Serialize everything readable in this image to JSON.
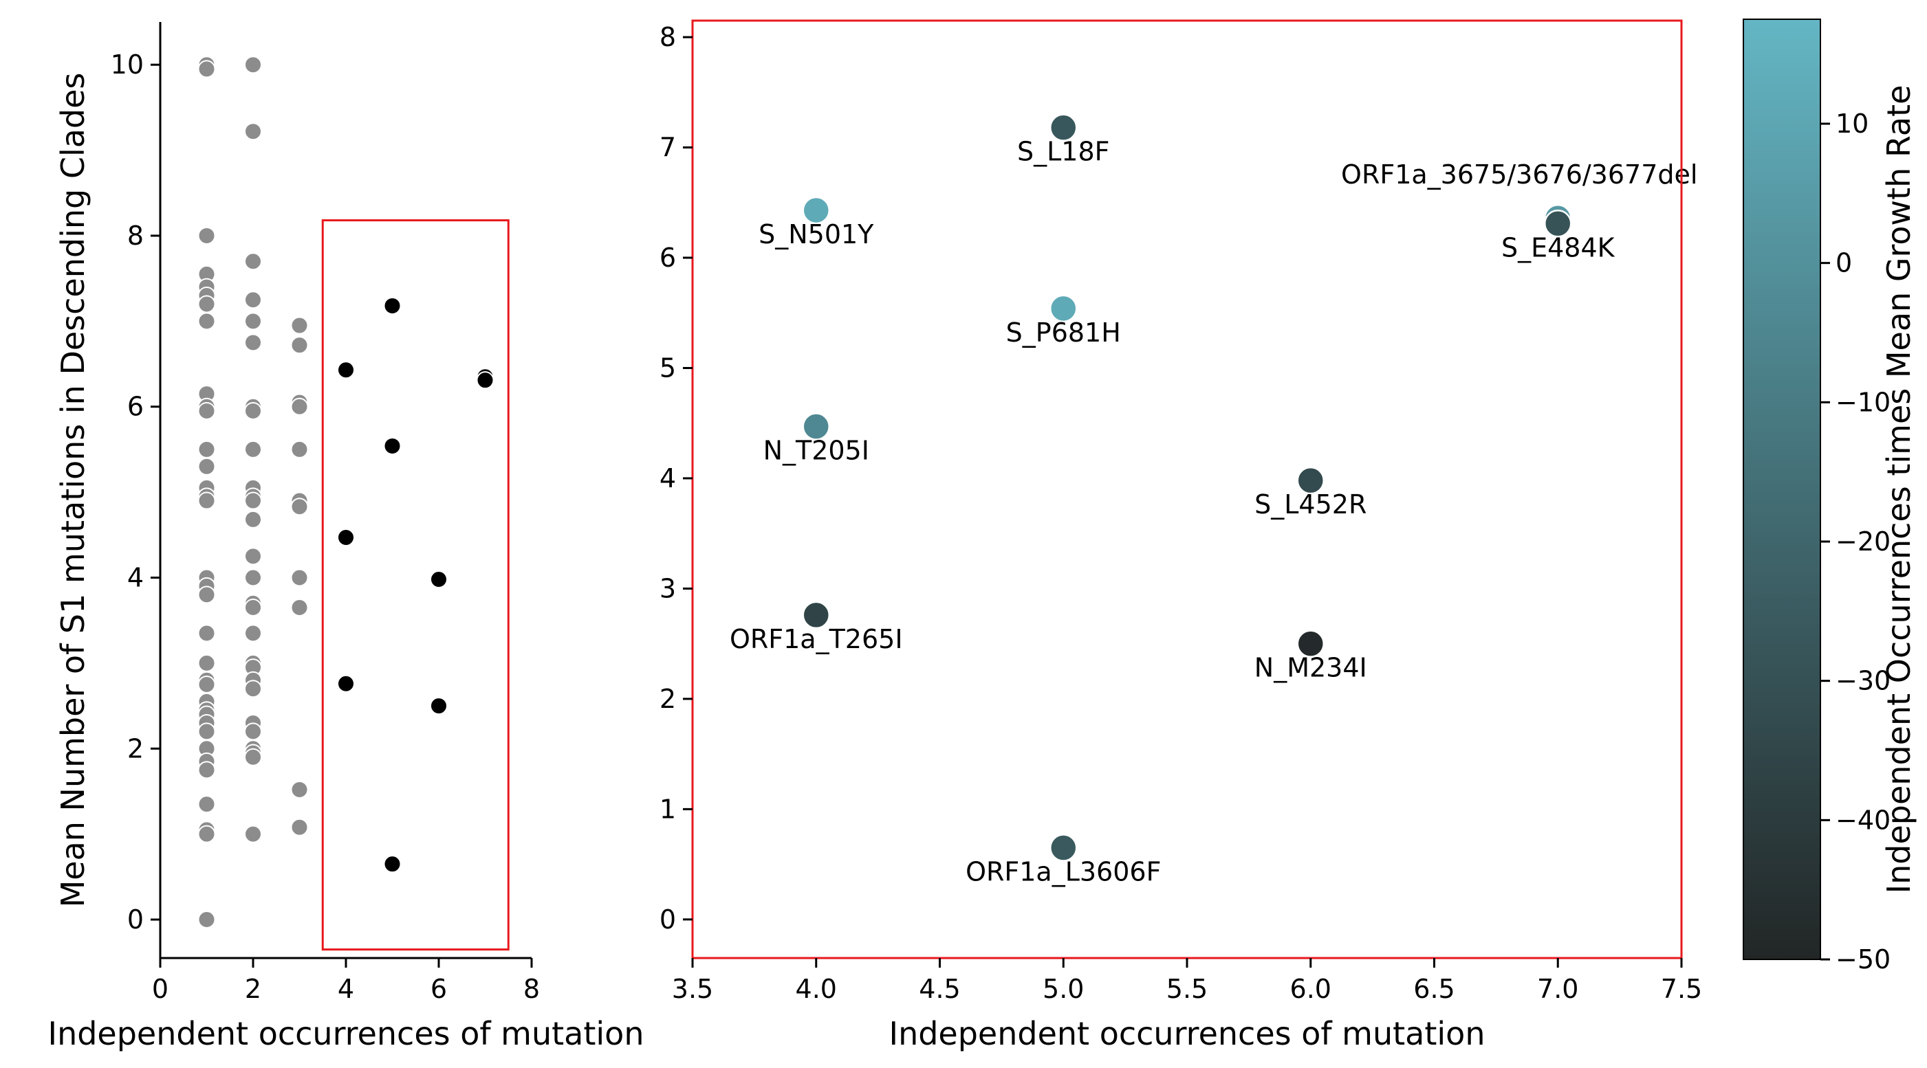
{
  "chart_data": [
    {
      "type": "scatter",
      "panel": "overview",
      "xlabel": "Independent occurrences of mutation",
      "ylabel": "Mean Number of S1 mutations in Descending Clades",
      "xlim": [
        0,
        8
      ],
      "ylim": [
        -0.45,
        10.5
      ],
      "xticks": [
        0,
        2,
        4,
        6,
        8
      ],
      "yticks": [
        0,
        2,
        4,
        6,
        8,
        10
      ],
      "highlight_box": {
        "x0": 3.5,
        "x1": 7.5,
        "y0": -0.35,
        "y1": 8.18,
        "color": "#e8191d"
      },
      "series": [
        {
          "name": "other mutations",
          "color": "#8c8c8c",
          "points": [
            [
              1,
              10.0
            ],
            [
              1,
              9.95
            ],
            [
              1,
              8.0
            ],
            [
              1,
              7.55
            ],
            [
              1,
              7.4
            ],
            [
              1,
              7.3
            ],
            [
              1,
              7.2
            ],
            [
              1,
              7.0
            ],
            [
              1,
              6.15
            ],
            [
              1,
              6.0
            ],
            [
              1,
              5.95
            ],
            [
              1,
              5.5
            ],
            [
              1,
              5.3
            ],
            [
              1,
              5.05
            ],
            [
              1,
              4.95
            ],
            [
              1,
              4.9
            ],
            [
              1,
              4.0
            ],
            [
              1,
              3.9
            ],
            [
              1,
              3.8
            ],
            [
              1,
              3.35
            ],
            [
              1,
              3.0
            ],
            [
              1,
              2.8
            ],
            [
              1,
              2.75
            ],
            [
              1,
              2.55
            ],
            [
              1,
              2.45
            ],
            [
              1,
              2.4
            ],
            [
              1,
              2.3
            ],
            [
              1,
              2.2
            ],
            [
              1,
              2.0
            ],
            [
              1,
              1.85
            ],
            [
              1,
              1.75
            ],
            [
              1,
              1.35
            ],
            [
              1,
              1.05
            ],
            [
              1,
              1.0
            ],
            [
              1,
              0.0
            ],
            [
              2,
              10.0
            ],
            [
              2,
              9.22
            ],
            [
              2,
              7.7
            ],
            [
              2,
              7.25
            ],
            [
              2,
              7.0
            ],
            [
              2,
              6.75
            ],
            [
              2,
              6.0
            ],
            [
              2,
              5.95
            ],
            [
              2,
              5.5
            ],
            [
              2,
              5.05
            ],
            [
              2,
              4.95
            ],
            [
              2,
              4.9
            ],
            [
              2,
              4.68
            ],
            [
              2,
              4.25
            ],
            [
              2,
              4.0
            ],
            [
              2,
              3.7
            ],
            [
              2,
              3.65
            ],
            [
              2,
              3.35
            ],
            [
              2,
              3.0
            ],
            [
              2,
              2.95
            ],
            [
              2,
              2.8
            ],
            [
              2,
              2.7
            ],
            [
              2,
              2.3
            ],
            [
              2,
              2.2
            ],
            [
              2,
              2.0
            ],
            [
              2,
              1.95
            ],
            [
              2,
              1.9
            ],
            [
              2,
              1.0
            ],
            [
              3,
              6.95
            ],
            [
              3,
              6.72
            ],
            [
              3,
              6.05
            ],
            [
              3,
              6.0
            ],
            [
              3,
              5.5
            ],
            [
              3,
              4.9
            ],
            [
              3,
              4.83
            ],
            [
              3,
              4.0
            ],
            [
              3,
              3.65
            ],
            [
              3,
              1.52
            ],
            [
              3,
              1.08
            ]
          ]
        },
        {
          "name": "highlighted mutations",
          "color": "#000000",
          "points": [
            [
              4,
              6.43
            ],
            [
              4,
              4.47
            ],
            [
              4,
              2.76
            ],
            [
              5,
              7.18
            ],
            [
              5,
              5.54
            ],
            [
              5,
              0.65
            ],
            [
              6,
              3.98
            ],
            [
              6,
              2.5
            ],
            [
              7,
              6.35
            ],
            [
              7,
              6.31
            ]
          ]
        }
      ]
    },
    {
      "type": "scatter",
      "panel": "zoom",
      "xlabel": "Independent occurrences of mutation",
      "xlim": [
        3.5,
        7.5
      ],
      "ylim": [
        -0.35,
        8.15
      ],
      "xticks": [
        "3.5",
        "4.0",
        "4.5",
        "5.0",
        "5.5",
        "6.0",
        "6.5",
        "7.0",
        "7.5"
      ],
      "yticks": [
        0,
        1,
        2,
        3,
        4,
        5,
        6,
        7,
        8
      ],
      "frame_color": "#e8191d",
      "points": [
        {
          "label": "S_L18F",
          "x": 5,
          "y": 7.18,
          "c": -27
        },
        {
          "label": "S_N501Y",
          "x": 4,
          "y": 6.43,
          "c": 12
        },
        {
          "label": "ORF1a_3675/3676/3677del",
          "x": 7,
          "y": 6.36,
          "c": 4
        },
        {
          "label": "S_E484K",
          "x": 7,
          "y": 6.31,
          "c": -29
        },
        {
          "label": "S_P681H",
          "x": 5,
          "y": 5.54,
          "c": 12
        },
        {
          "label": "N_T205I",
          "x": 4,
          "y": 4.47,
          "c": -4
        },
        {
          "label": "S_L452R",
          "x": 6,
          "y": 3.98,
          "c": -33
        },
        {
          "label": "ORF1a_T265I",
          "x": 4,
          "y": 2.76,
          "c": -36
        },
        {
          "label": "N_M234I",
          "x": 6,
          "y": 2.5,
          "c": -48
        },
        {
          "label": "ORF1a_L3606F",
          "x": 5,
          "y": 0.65,
          "c": -26
        }
      ]
    },
    {
      "type": "colorbar",
      "label": "Independent Occurrences times Mean Growth Rate",
      "vmin": -50,
      "vmax": 17.5,
      "ticks": [
        10,
        0,
        -10,
        -20,
        -30,
        -40,
        -50
      ],
      "tick_labels": [
        "10",
        "0",
        "−10",
        "−20",
        "−30",
        "−40",
        "−50"
      ],
      "color_low": "#222626",
      "color_high": "#64b6c4"
    }
  ]
}
